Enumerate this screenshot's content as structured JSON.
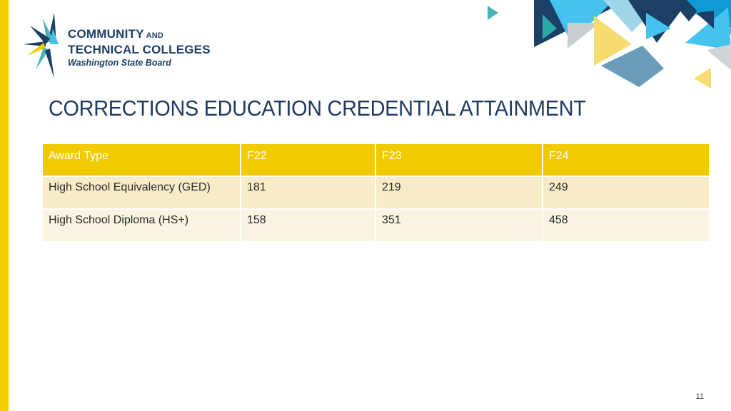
{
  "logo": {
    "line1": "COMMUNITY",
    "line1_small": "AND",
    "line2": "TECHNICAL COLLEGES",
    "line3": "Washington State Board"
  },
  "slide": {
    "title": "CORRECTIONS EDUCATION CREDENTIAL ATTAINMENT",
    "page_number": "11"
  },
  "table": {
    "headers": [
      "Award Type",
      "F22",
      "F23",
      "F24"
    ],
    "rows": [
      [
        "High School Equivalency (GED)",
        "181",
        "219",
        "249"
      ],
      [
        "High School Diploma (HS+)",
        "158",
        "351",
        "458"
      ]
    ]
  },
  "colors": {
    "accent_yellow": "#f5cc00",
    "header_yellow": "#f2ca00",
    "navy": "#1c3f66",
    "teal": "#4fb3b6",
    "sky_blue": "#45c2ee"
  }
}
